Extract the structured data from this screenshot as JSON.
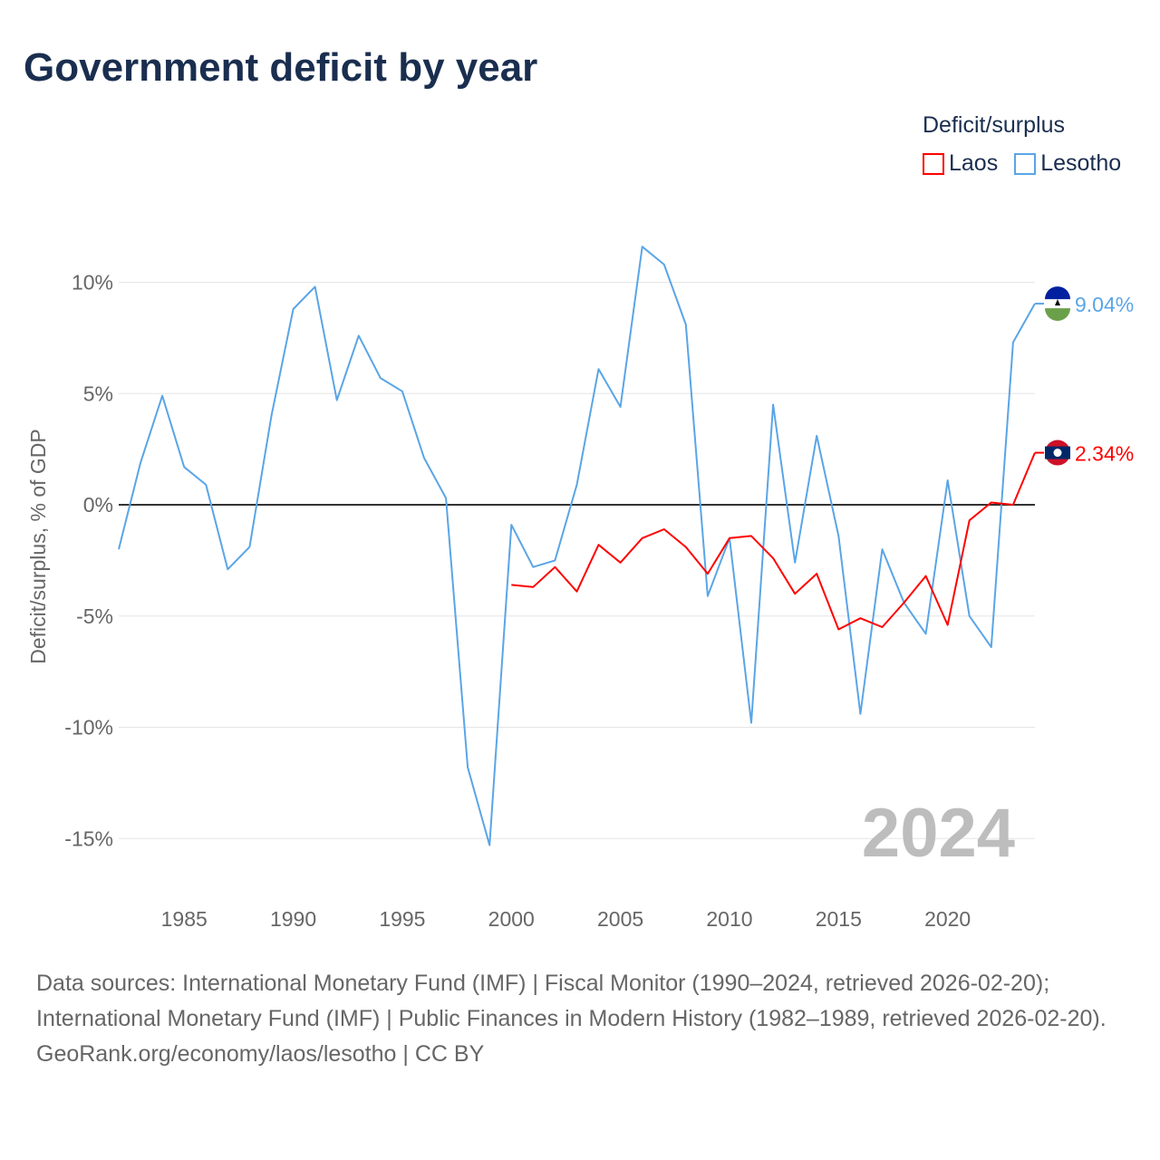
{
  "title": "Government deficit by year",
  "legend": {
    "title": "Deficit/surplus",
    "items": [
      {
        "label": "Laos",
        "color": "#ff0000"
      },
      {
        "label": "Lesotho",
        "color": "#5aa5e6"
      }
    ]
  },
  "year_watermark": "2024",
  "footer": {
    "sources": "Data sources: International Monetary Fund (IMF) | Fiscal Monitor (1990–2024, retrieved 2026-02-20); International Monetary Fund (IMF) | Public Finances in Modern History (1982–1989, retrieved 2026-02-20).",
    "credit": "GeoRank.org/economy/laos/lesotho | CC BY"
  },
  "chart_data": {
    "type": "line",
    "title": "Government deficit by year",
    "ylabel": "Deficit/surplus, % of GDP",
    "xlabel": "",
    "xlim": [
      1982,
      2024
    ],
    "ylim": [
      -17,
      12
    ],
    "x_ticks": [
      1985,
      1990,
      1995,
      2000,
      2005,
      2010,
      2015,
      2020
    ],
    "y_ticks": [
      {
        "v": 10,
        "label": "10%"
      },
      {
        "v": 5,
        "label": "5%"
      },
      {
        "v": 0,
        "label": "0%"
      },
      {
        "v": -5,
        "label": "-5%"
      },
      {
        "v": -10,
        "label": "-10%"
      },
      {
        "v": -15,
        "label": "-15%"
      }
    ],
    "grid": true,
    "legend_position": "top-right",
    "series": [
      {
        "name": "Lesotho",
        "color": "#5aa5e6",
        "end_label": "9.04%",
        "start": 1982,
        "values": [
          -2.0,
          1.9,
          4.9,
          1.7,
          0.9,
          -2.9,
          -1.9,
          4.0,
          8.8,
          9.8,
          4.7,
          7.6,
          5.7,
          5.1,
          2.1,
          0.3,
          -11.8,
          -15.3,
          -0.9,
          -2.8,
          -2.5,
          0.9,
          6.1,
          4.4,
          11.6,
          10.8,
          8.1,
          -4.1,
          -1.5,
          -9.8,
          4.5,
          -2.6,
          3.1,
          -1.4,
          -9.4,
          -2.0,
          -4.4,
          -5.8,
          1.1,
          -5.0,
          -6.4,
          7.3,
          9.04
        ]
      },
      {
        "name": "Laos",
        "color": "#ff0000",
        "end_label": "2.34%",
        "start": 2000,
        "values": [
          -3.6,
          -3.7,
          -2.8,
          -3.9,
          -1.8,
          -2.6,
          -1.5,
          -1.1,
          -1.9,
          -3.1,
          -1.5,
          -1.4,
          -2.4,
          -4.0,
          -3.1,
          -5.6,
          -5.1,
          -5.5,
          -4.4,
          -3.2,
          -5.4,
          -0.7,
          0.1,
          0.0,
          2.34
        ]
      }
    ]
  }
}
